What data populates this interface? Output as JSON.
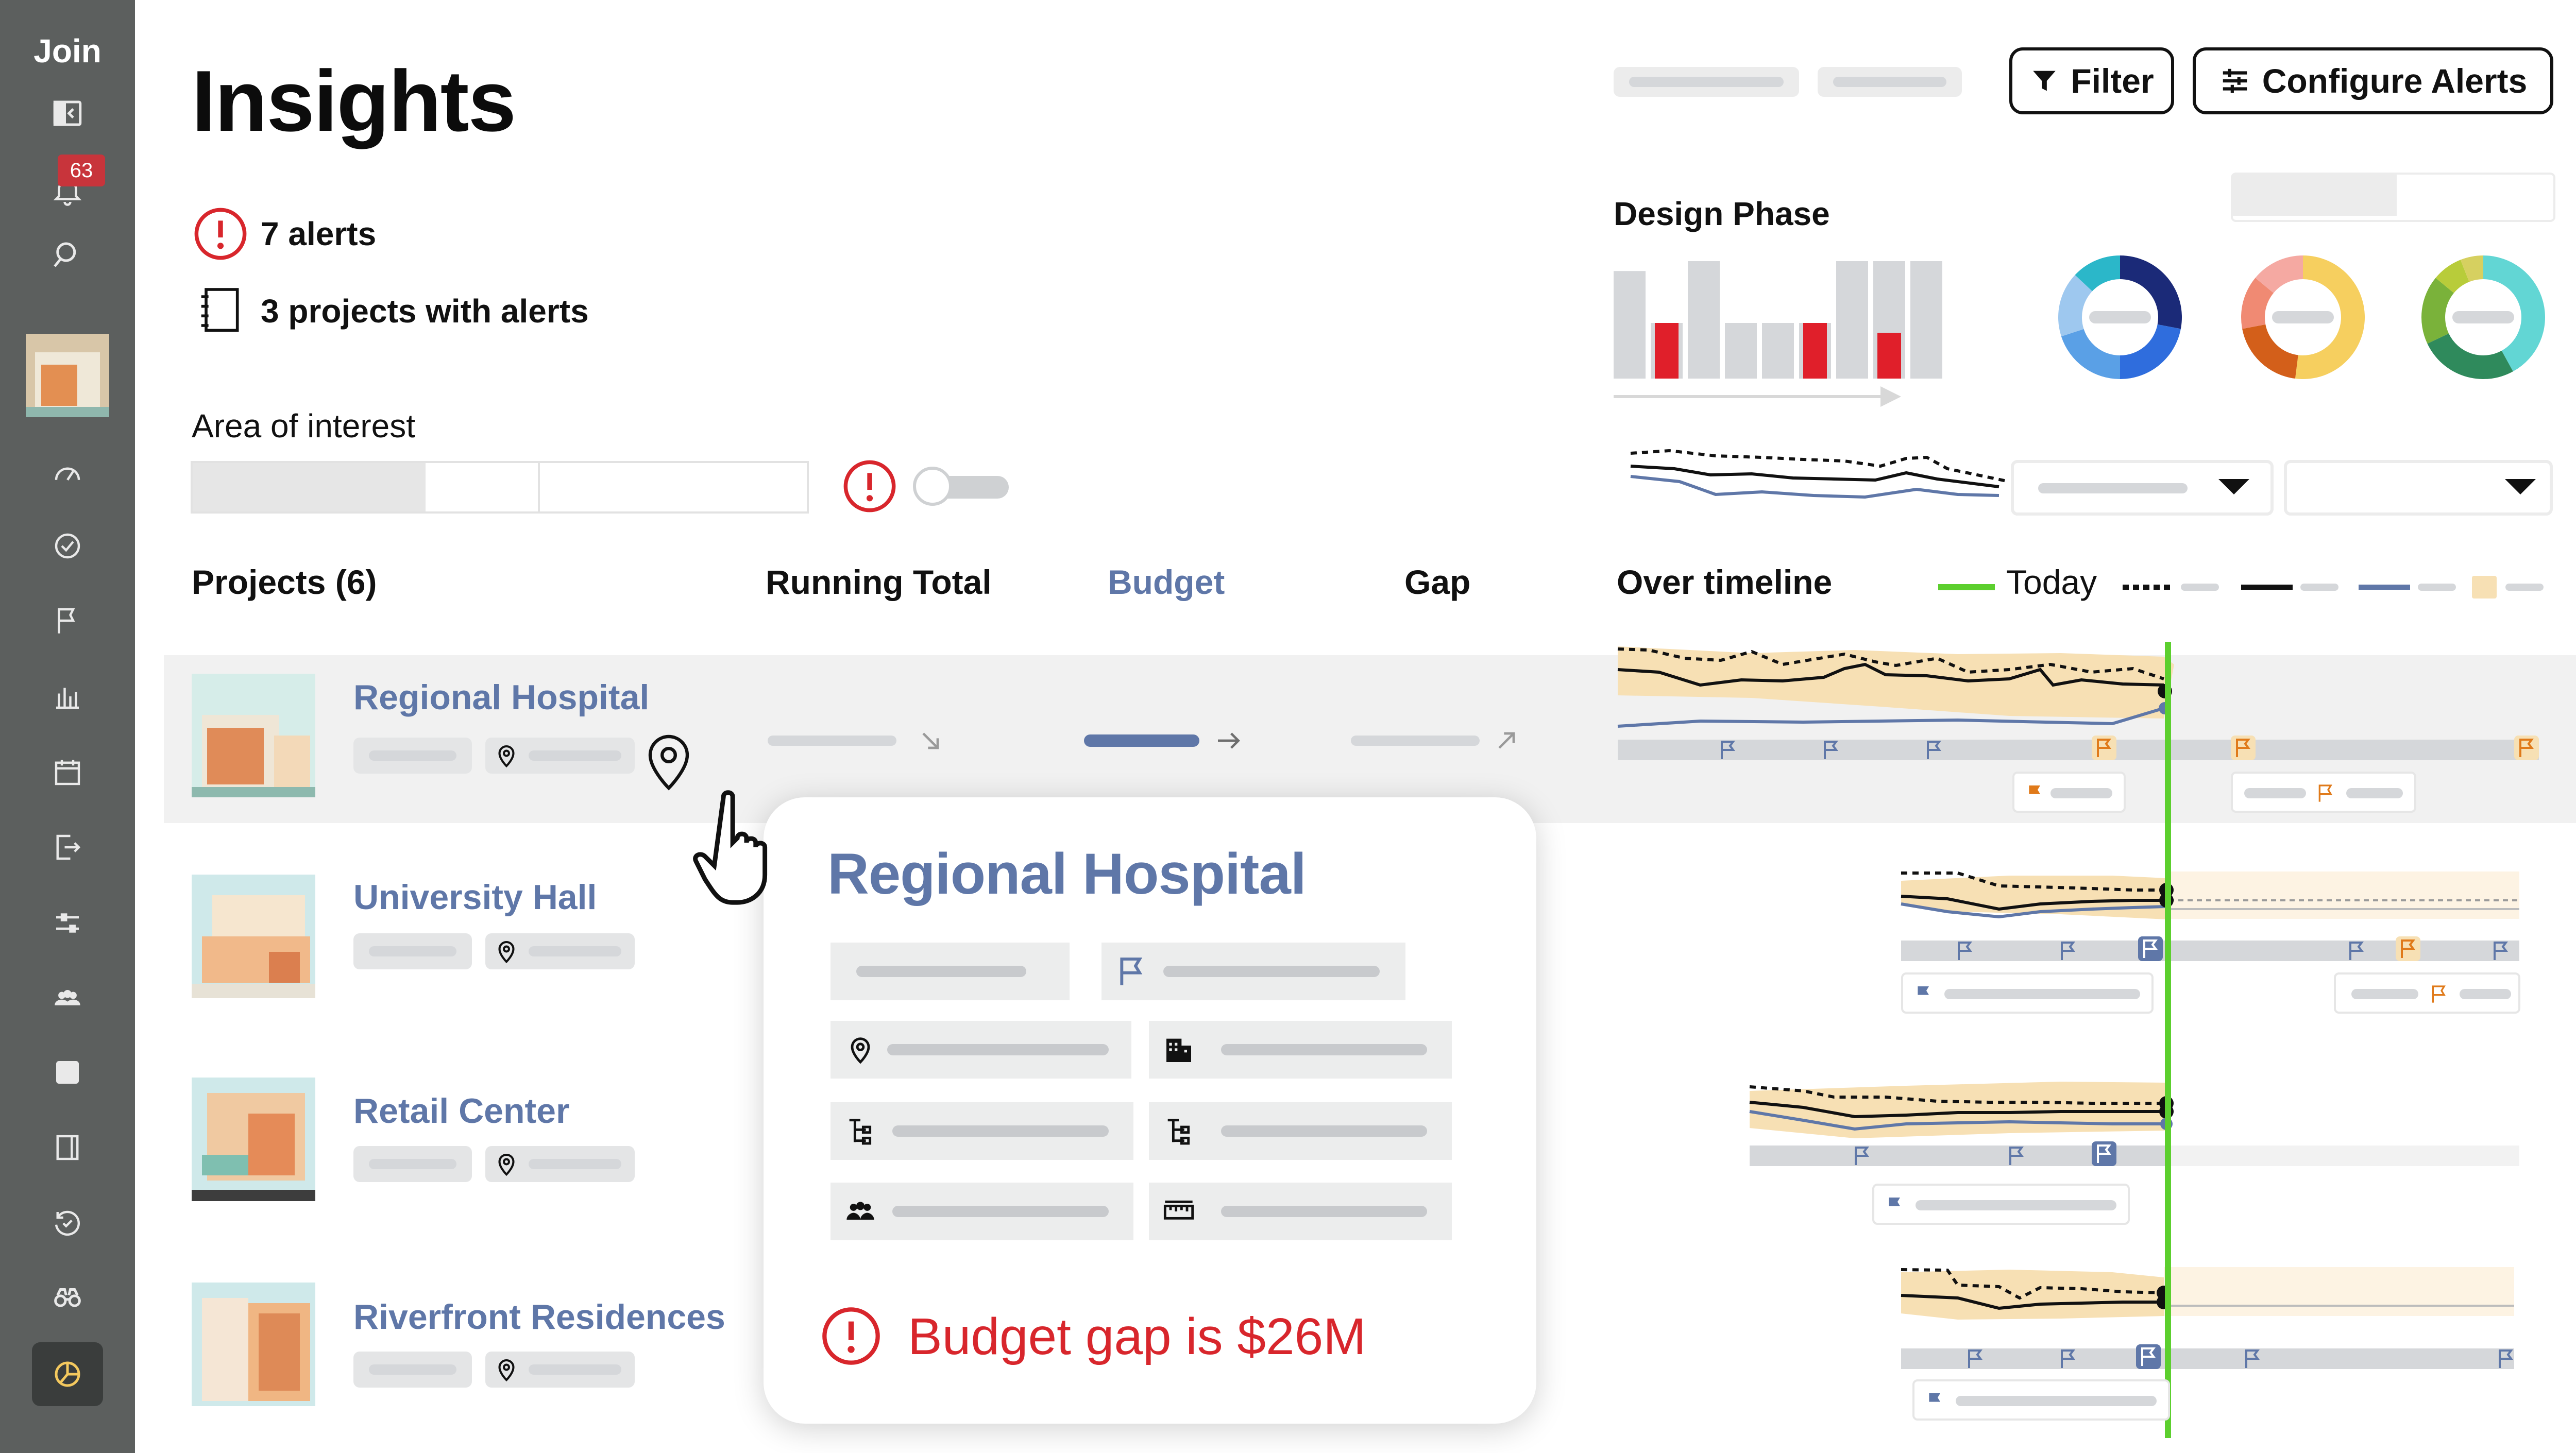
{
  "sidebar": {
    "app_name": "Join",
    "notifications_count": "63",
    "icons": [
      "panel-collapse-icon",
      "bell-icon",
      "search-icon",
      "project-thumbnail",
      "gauge-icon",
      "check-circle-icon",
      "flag-icon",
      "bar-chart-icon",
      "calendar-icon",
      "export-icon",
      "sliders-icon",
      "team-icon",
      "square-icon",
      "notebook-icon",
      "history-check-icon",
      "binoculars-icon",
      "insights-pie-icon"
    ]
  },
  "header": {
    "title": "Insights",
    "filter_label": "Filter",
    "configure_alerts_label": "Configure Alerts"
  },
  "summary": {
    "alerts_text": "7 alerts",
    "projects_with_alerts_text": "3 projects with alerts",
    "area_of_interest_label": "Area of interest"
  },
  "design_phase": {
    "title": "Design Phase",
    "bars": [
      {
        "value": 0.87,
        "highlight": 0.0
      },
      {
        "value": 0.45,
        "highlight": 0.45
      },
      {
        "value": 0.95,
        "highlight": 0.0
      },
      {
        "value": 0.45,
        "highlight": 0.0
      },
      {
        "value": 0.45,
        "highlight": 0.0
      },
      {
        "value": 0.45,
        "highlight": 0.45
      },
      {
        "value": 0.95,
        "highlight": 0.0
      },
      {
        "value": 0.95,
        "highlight": 0.37
      },
      {
        "value": 0.95,
        "highlight": 0.0
      }
    ],
    "donuts": [
      {
        "name": "donut-chart-blue",
        "colors": [
          "#1b2a78",
          "#2f6ddd",
          "#5aa0e6",
          "#9ec8ef",
          "#2bb7c9"
        ],
        "shares": [
          0.28,
          0.22,
          0.2,
          0.17,
          0.13
        ]
      },
      {
        "name": "donut-chart-orange",
        "colors": [
          "#f6cf5f",
          "#d35f1a",
          "#f08a73",
          "#f5a9a2"
        ],
        "shares": [
          0.52,
          0.2,
          0.14,
          0.14
        ]
      },
      {
        "name": "donut-chart-green",
        "colors": [
          "#62d6d4",
          "#2f8a5c",
          "#7ab23a",
          "#b8cc3a",
          "#d6d060"
        ],
        "shares": [
          0.42,
          0.26,
          0.18,
          0.08,
          0.06
        ]
      }
    ]
  },
  "table": {
    "headers": {
      "projects": "Projects (6)",
      "running_total": "Running Total",
      "budget": "Budget",
      "gap": "Gap",
      "over_timeline": "Over timeline",
      "today": "Today"
    },
    "projects": [
      {
        "name": "Regional Hospital"
      },
      {
        "name": "University Hall"
      },
      {
        "name": "Retail Center"
      },
      {
        "name": "Riverfront Residences"
      }
    ]
  },
  "popup": {
    "title": "Regional Hospital",
    "alert_text": "Budget gap is $26M"
  },
  "colors": {
    "accent_blue": "#5f77a8",
    "alert_red": "#d8262c",
    "today_green": "#5ccf2e",
    "band_orange": "#f7e0b4",
    "sidebar": "#5c5f5e"
  }
}
